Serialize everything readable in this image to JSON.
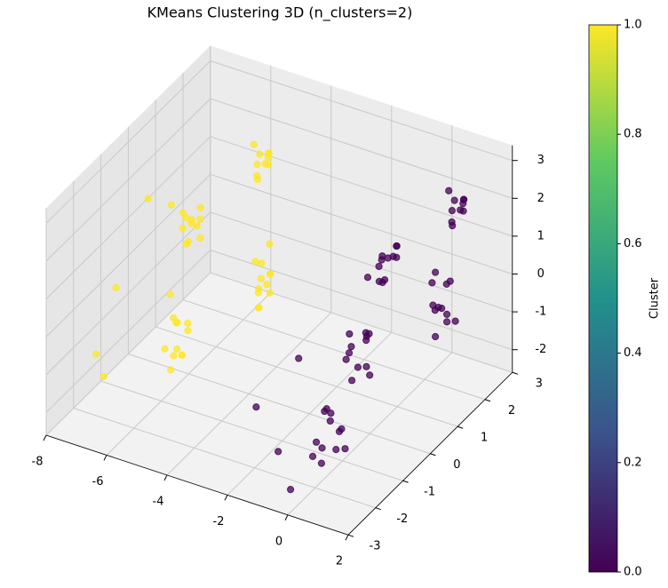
{
  "chart_data": {
    "type": "scatter3d",
    "title": "KMeans Clustering 3D (n_clusters=2)",
    "xlim": [
      -8,
      2
    ],
    "ylim": [
      -3,
      3
    ],
    "zlim": [
      -2.6,
      3.4
    ],
    "xticks": [
      -8,
      -6,
      -4,
      -2,
      0,
      2
    ],
    "yticks": [
      -3,
      -2,
      -1,
      0,
      1,
      2,
      3
    ],
    "zticks": [
      -2,
      -1,
      0,
      1,
      2,
      3
    ],
    "grid": true,
    "series": [
      {
        "color": "#440154",
        "x": [
          0.3,
          0.6,
          0.5,
          0.8,
          0.2,
          0.7,
          0.4,
          0.9,
          0.5,
          0.6,
          0.1,
          0.4,
          0.4,
          0.7,
          0.3,
          0.6,
          0.8,
          0.5,
          0.2,
          0.6,
          0.5,
          0.9,
          0.4,
          0.7,
          0.4,
          0.6,
          0.3,
          0.7,
          0.5,
          0.8,
          0.2,
          0.5,
          0.6,
          0.4,
          0.7,
          0.3,
          0.9,
          1.1,
          0.8,
          1.2,
          1.0,
          1.3,
          0.9,
          1.1,
          1.0,
          0.7,
          1.2,
          1.0,
          0.9,
          1.1,
          1.0,
          1.2,
          0.8,
          1.0,
          1.1,
          0.9,
          1.3,
          1.0,
          -1.5,
          -0.5,
          -1.0,
          0.0
        ],
        "y": [
          -2.1,
          -1.9,
          -2.3,
          -2.0,
          -1.8,
          -2.2,
          -2.4,
          -1.9,
          -2.0,
          -1.7,
          -2.2,
          -2.1,
          -1.1,
          -0.9,
          -1.2,
          -0.8,
          -1.0,
          -1.3,
          -0.9,
          -1.1,
          -0.7,
          -1.0,
          -1.2,
          -0.8,
          0.1,
          -0.2,
          0.0,
          0.2,
          -0.1,
          0.1,
          -0.3,
          0.3,
          0.0,
          -0.1,
          0.2,
          0.1,
          1.4,
          1.6,
          1.5,
          1.3,
          1.7,
          1.5,
          1.4,
          1.6,
          1.2,
          1.5,
          1.8,
          1.4,
          2.0,
          2.2,
          1.9,
          2.1,
          2.0,
          2.3,
          1.8,
          2.1,
          2.0,
          2.2,
          -2.5,
          -2.8,
          -1.5,
          -2.9
        ],
        "z": [
          -1.8,
          -1.5,
          -1.2,
          -0.9,
          -0.6,
          -0.3,
          -1.0,
          -1.4,
          -0.7,
          -1.1,
          -1.6,
          -0.4,
          -0.3,
          0.0,
          0.3,
          0.6,
          0.9,
          1.1,
          0.4,
          0.1,
          0.7,
          -0.1,
          0.5,
          0.8,
          1.5,
          1.7,
          1.9,
          2.1,
          2.3,
          2.5,
          1.8,
          2.0,
          2.2,
          1.6,
          2.4,
          2.0,
          -0.8,
          -0.5,
          -0.2,
          0.1,
          0.4,
          0.7,
          0.9,
          -0.3,
          0.2,
          0.5,
          -0.6,
          0.0,
          1.8,
          2.0,
          2.2,
          2.4,
          2.6,
          2.1,
          1.9,
          2.3,
          2.5,
          2.0,
          -0.5,
          -1.2,
          0.2,
          -2.0
        ]
      },
      {
        "color": "#fde725",
        "x": [
          -6.1,
          -5.9,
          -6.2,
          -5.8,
          -6.0,
          -5.7,
          -6.3,
          -6.0,
          -5.9,
          -6.1,
          -5.8,
          -6.0,
          -5.6,
          -5.4,
          -5.7,
          -5.3,
          -5.5,
          -5.2,
          -5.8,
          -5.5,
          -5.4,
          -5.6,
          -5.3,
          -5.5,
          -5.1,
          -4.9,
          -5.0,
          -4.8,
          -5.2,
          -5.0,
          -4.9,
          -5.1,
          -4.7,
          -5.0,
          -4.6,
          -4.4,
          -4.5,
          -4.3,
          -4.7,
          -4.5,
          -4.4,
          -4.6,
          -4.2,
          -4.5,
          -4.4,
          -4.6,
          -7.5,
          -7.0,
          -7.8,
          -6.8
        ],
        "y": [
          0.1,
          -0.2,
          0.0,
          0.2,
          -0.1,
          0.1,
          -0.3,
          0.3,
          0.0,
          -0.1,
          0.2,
          0.1,
          -1.1,
          -0.9,
          -1.2,
          -0.8,
          -1.0,
          -1.3,
          -0.9,
          -1.1,
          -0.7,
          -1.0,
          -1.2,
          -0.8,
          1.5,
          1.7,
          1.4,
          1.6,
          1.5,
          1.8,
          1.3,
          1.6,
          1.5,
          1.7,
          1.0,
          1.2,
          0.9,
          1.1,
          1.0,
          1.3,
          0.8,
          1.1,
          1.0,
          1.2,
          0.9,
          1.0,
          -1.0,
          -2.0,
          0.5,
          -2.5
        ],
        "z": [
          0.8,
          1.0,
          1.2,
          1.4,
          1.6,
          1.8,
          2.0,
          1.1,
          1.5,
          1.7,
          0.9,
          1.3,
          -1.6,
          -1.3,
          -1.0,
          -0.7,
          -0.4,
          -0.1,
          0.2,
          -1.2,
          -0.6,
          -0.3,
          -0.9,
          -1.4,
          1.8,
          2.0,
          2.2,
          2.4,
          2.6,
          2.1,
          1.9,
          2.3,
          2.5,
          2.0,
          -1.2,
          -0.9,
          -0.6,
          -0.3,
          0.0,
          0.3,
          -1.0,
          -0.5,
          -0.2,
          -0.7,
          0.1,
          -0.8,
          0.0,
          -1.5,
          1.2,
          -0.5
        ]
      }
    ],
    "colorbar": {
      "label": "Cluster",
      "lim": [
        0,
        1
      ],
      "colors": [
        "#440154",
        "#3b528b",
        "#21918c",
        "#5ec962",
        "#fde725"
      ],
      "ticks": [
        {
          "value": 0,
          "label": "0.0"
        },
        {
          "value": 0.2,
          "label": "0.2"
        },
        {
          "value": 0.4,
          "label": "0.4"
        },
        {
          "value": 0.6,
          "label": "0.6"
        },
        {
          "value": 0.8,
          "label": "0.8"
        },
        {
          "value": 1,
          "label": "1.0"
        }
      ]
    }
  }
}
